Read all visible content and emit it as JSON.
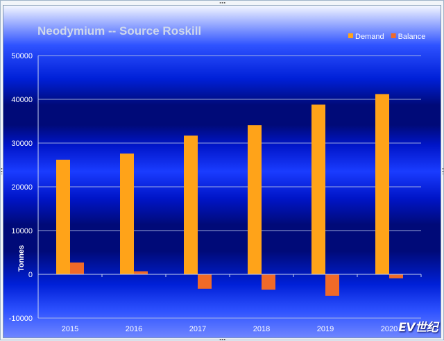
{
  "chart_data": {
    "type": "bar",
    "title": "Neodymium -- Source Roskill",
    "xlabel": "",
    "ylabel": "Tonnes",
    "categories": [
      "2015",
      "2016",
      "2017",
      "2018",
      "2019",
      "2020"
    ],
    "series": [
      {
        "name": "Demand",
        "color": "#ffa319",
        "values": [
          26200,
          27600,
          31700,
          34100,
          38800,
          41200
        ]
      },
      {
        "name": "Balance",
        "color": "#f06a28",
        "values": [
          2700,
          700,
          -3300,
          -3500,
          -4900,
          -900
        ]
      }
    ],
    "ylim": [
      -10000,
      50000
    ],
    "yticks": [
      -10000,
      0,
      10000,
      20000,
      30000,
      40000,
      50000
    ],
    "grid": true,
    "legend_position": "top-right",
    "colors": {
      "title": "#cfd8ec",
      "grid": "#b8c4e8",
      "axis_text": "#ffffff"
    }
  },
  "watermark": {
    "text": "EV世纪"
  }
}
